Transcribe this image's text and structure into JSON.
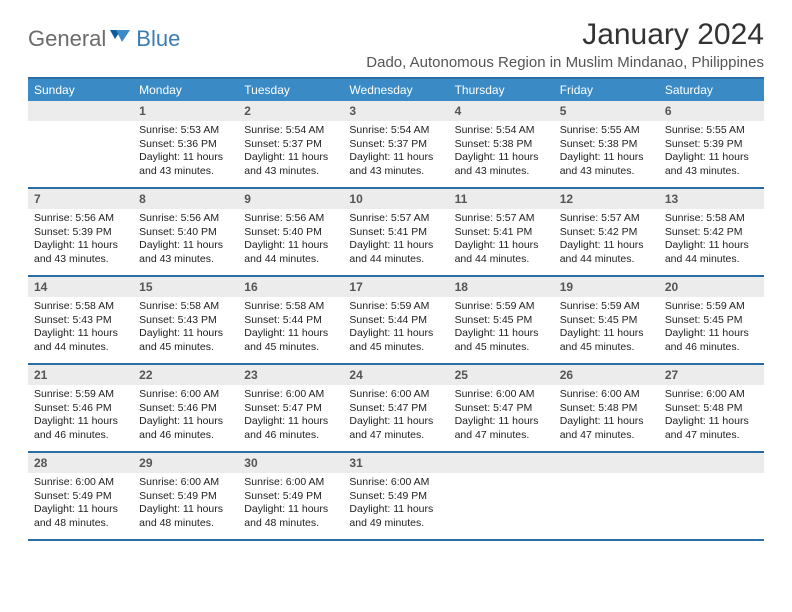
{
  "brand": {
    "part1": "General",
    "part2": "Blue"
  },
  "title": "January 2024",
  "location": "Dado, Autonomous Region in Muslim Mindanao, Philippines",
  "colors": {
    "header_bar": "#3a8ac6",
    "border": "#2e6da4",
    "daynum_bg": "#ececec",
    "logo_gray": "#6b6b6b",
    "logo_blue": "#3a7db5"
  },
  "dow": [
    "Sunday",
    "Monday",
    "Tuesday",
    "Wednesday",
    "Thursday",
    "Friday",
    "Saturday"
  ],
  "weeks": [
    [
      {
        "n": "",
        "sr": "",
        "ss": "",
        "dl": ""
      },
      {
        "n": "1",
        "sr": "Sunrise: 5:53 AM",
        "ss": "Sunset: 5:36 PM",
        "dl": "Daylight: 11 hours and 43 minutes."
      },
      {
        "n": "2",
        "sr": "Sunrise: 5:54 AM",
        "ss": "Sunset: 5:37 PM",
        "dl": "Daylight: 11 hours and 43 minutes."
      },
      {
        "n": "3",
        "sr": "Sunrise: 5:54 AM",
        "ss": "Sunset: 5:37 PM",
        "dl": "Daylight: 11 hours and 43 minutes."
      },
      {
        "n": "4",
        "sr": "Sunrise: 5:54 AM",
        "ss": "Sunset: 5:38 PM",
        "dl": "Daylight: 11 hours and 43 minutes."
      },
      {
        "n": "5",
        "sr": "Sunrise: 5:55 AM",
        "ss": "Sunset: 5:38 PM",
        "dl": "Daylight: 11 hours and 43 minutes."
      },
      {
        "n": "6",
        "sr": "Sunrise: 5:55 AM",
        "ss": "Sunset: 5:39 PM",
        "dl": "Daylight: 11 hours and 43 minutes."
      }
    ],
    [
      {
        "n": "7",
        "sr": "Sunrise: 5:56 AM",
        "ss": "Sunset: 5:39 PM",
        "dl": "Daylight: 11 hours and 43 minutes."
      },
      {
        "n": "8",
        "sr": "Sunrise: 5:56 AM",
        "ss": "Sunset: 5:40 PM",
        "dl": "Daylight: 11 hours and 43 minutes."
      },
      {
        "n": "9",
        "sr": "Sunrise: 5:56 AM",
        "ss": "Sunset: 5:40 PM",
        "dl": "Daylight: 11 hours and 44 minutes."
      },
      {
        "n": "10",
        "sr": "Sunrise: 5:57 AM",
        "ss": "Sunset: 5:41 PM",
        "dl": "Daylight: 11 hours and 44 minutes."
      },
      {
        "n": "11",
        "sr": "Sunrise: 5:57 AM",
        "ss": "Sunset: 5:41 PM",
        "dl": "Daylight: 11 hours and 44 minutes."
      },
      {
        "n": "12",
        "sr": "Sunrise: 5:57 AM",
        "ss": "Sunset: 5:42 PM",
        "dl": "Daylight: 11 hours and 44 minutes."
      },
      {
        "n": "13",
        "sr": "Sunrise: 5:58 AM",
        "ss": "Sunset: 5:42 PM",
        "dl": "Daylight: 11 hours and 44 minutes."
      }
    ],
    [
      {
        "n": "14",
        "sr": "Sunrise: 5:58 AM",
        "ss": "Sunset: 5:43 PM",
        "dl": "Daylight: 11 hours and 44 minutes."
      },
      {
        "n": "15",
        "sr": "Sunrise: 5:58 AM",
        "ss": "Sunset: 5:43 PM",
        "dl": "Daylight: 11 hours and 45 minutes."
      },
      {
        "n": "16",
        "sr": "Sunrise: 5:58 AM",
        "ss": "Sunset: 5:44 PM",
        "dl": "Daylight: 11 hours and 45 minutes."
      },
      {
        "n": "17",
        "sr": "Sunrise: 5:59 AM",
        "ss": "Sunset: 5:44 PM",
        "dl": "Daylight: 11 hours and 45 minutes."
      },
      {
        "n": "18",
        "sr": "Sunrise: 5:59 AM",
        "ss": "Sunset: 5:45 PM",
        "dl": "Daylight: 11 hours and 45 minutes."
      },
      {
        "n": "19",
        "sr": "Sunrise: 5:59 AM",
        "ss": "Sunset: 5:45 PM",
        "dl": "Daylight: 11 hours and 45 minutes."
      },
      {
        "n": "20",
        "sr": "Sunrise: 5:59 AM",
        "ss": "Sunset: 5:45 PM",
        "dl": "Daylight: 11 hours and 46 minutes."
      }
    ],
    [
      {
        "n": "21",
        "sr": "Sunrise: 5:59 AM",
        "ss": "Sunset: 5:46 PM",
        "dl": "Daylight: 11 hours and 46 minutes."
      },
      {
        "n": "22",
        "sr": "Sunrise: 6:00 AM",
        "ss": "Sunset: 5:46 PM",
        "dl": "Daylight: 11 hours and 46 minutes."
      },
      {
        "n": "23",
        "sr": "Sunrise: 6:00 AM",
        "ss": "Sunset: 5:47 PM",
        "dl": "Daylight: 11 hours and 46 minutes."
      },
      {
        "n": "24",
        "sr": "Sunrise: 6:00 AM",
        "ss": "Sunset: 5:47 PM",
        "dl": "Daylight: 11 hours and 47 minutes."
      },
      {
        "n": "25",
        "sr": "Sunrise: 6:00 AM",
        "ss": "Sunset: 5:47 PM",
        "dl": "Daylight: 11 hours and 47 minutes."
      },
      {
        "n": "26",
        "sr": "Sunrise: 6:00 AM",
        "ss": "Sunset: 5:48 PM",
        "dl": "Daylight: 11 hours and 47 minutes."
      },
      {
        "n": "27",
        "sr": "Sunrise: 6:00 AM",
        "ss": "Sunset: 5:48 PM",
        "dl": "Daylight: 11 hours and 47 minutes."
      }
    ],
    [
      {
        "n": "28",
        "sr": "Sunrise: 6:00 AM",
        "ss": "Sunset: 5:49 PM",
        "dl": "Daylight: 11 hours and 48 minutes."
      },
      {
        "n": "29",
        "sr": "Sunrise: 6:00 AM",
        "ss": "Sunset: 5:49 PM",
        "dl": "Daylight: 11 hours and 48 minutes."
      },
      {
        "n": "30",
        "sr": "Sunrise: 6:00 AM",
        "ss": "Sunset: 5:49 PM",
        "dl": "Daylight: 11 hours and 48 minutes."
      },
      {
        "n": "31",
        "sr": "Sunrise: 6:00 AM",
        "ss": "Sunset: 5:49 PM",
        "dl": "Daylight: 11 hours and 49 minutes."
      },
      {
        "n": "",
        "sr": "",
        "ss": "",
        "dl": ""
      },
      {
        "n": "",
        "sr": "",
        "ss": "",
        "dl": ""
      },
      {
        "n": "",
        "sr": "",
        "ss": "",
        "dl": ""
      }
    ]
  ]
}
